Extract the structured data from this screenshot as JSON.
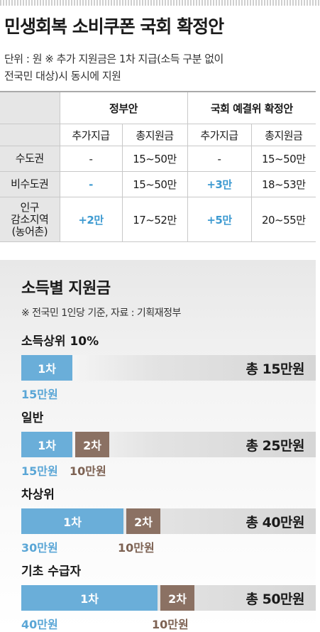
{
  "title": "민생회복 소비쿠폰 국회 확정안",
  "note_line1": "단위 : 원 ※ 추가 지원금은 1차 지급(소득 구분 없이",
  "note_line2": "전국민 대상)시 동시에 지원",
  "table": {
    "group_headers": [
      "정부안",
      "국회 예결위 확정안"
    ],
    "sub_headers": [
      "추가지급",
      "총지원금",
      "추가지급",
      "총지원금"
    ],
    "rows": [
      {
        "label": [
          "수도권"
        ],
        "cells": [
          "-",
          "15~50만",
          "-",
          "15~50만"
        ],
        "highlight": [
          false,
          false,
          false,
          false
        ]
      },
      {
        "label": [
          "비수도권"
        ],
        "cells": [
          "-",
          "15~50만",
          "+3만",
          "18~53만"
        ],
        "highlight": [
          true,
          false,
          true,
          false
        ]
      },
      {
        "label": [
          "인구",
          "감소지역",
          "(농어촌)"
        ],
        "cells": [
          "+2만",
          "17~52만",
          "+5만",
          "20~55만"
        ],
        "highlight": [
          true,
          false,
          true,
          false
        ]
      }
    ]
  },
  "section": {
    "title": "소득별 지원금",
    "note": "※ 전국민 1인당 기준, 자료 : 기획재정부"
  },
  "chart_data": {
    "type": "bar",
    "stacked": true,
    "orientation": "horizontal",
    "title": "소득별 지원금",
    "categories": [
      "소득상위 10%",
      "일반",
      "차상위",
      "기초 수급자"
    ],
    "series": [
      {
        "name": "1차",
        "values": [
          15,
          15,
          30,
          40
        ],
        "value_labels": [
          "15만원",
          "15만원",
          "30만원",
          "40만원"
        ],
        "color": "#6aaed9"
      },
      {
        "name": "2차",
        "values": [
          0,
          10,
          10,
          10
        ],
        "value_labels": [
          "",
          "10만원",
          "10만원",
          "10만원"
        ],
        "color": "#8b7163"
      }
    ],
    "totals": [
      "총 15만원",
      "총 25만원",
      "총 40만원",
      "총 50만원"
    ],
    "unit": "만원"
  }
}
